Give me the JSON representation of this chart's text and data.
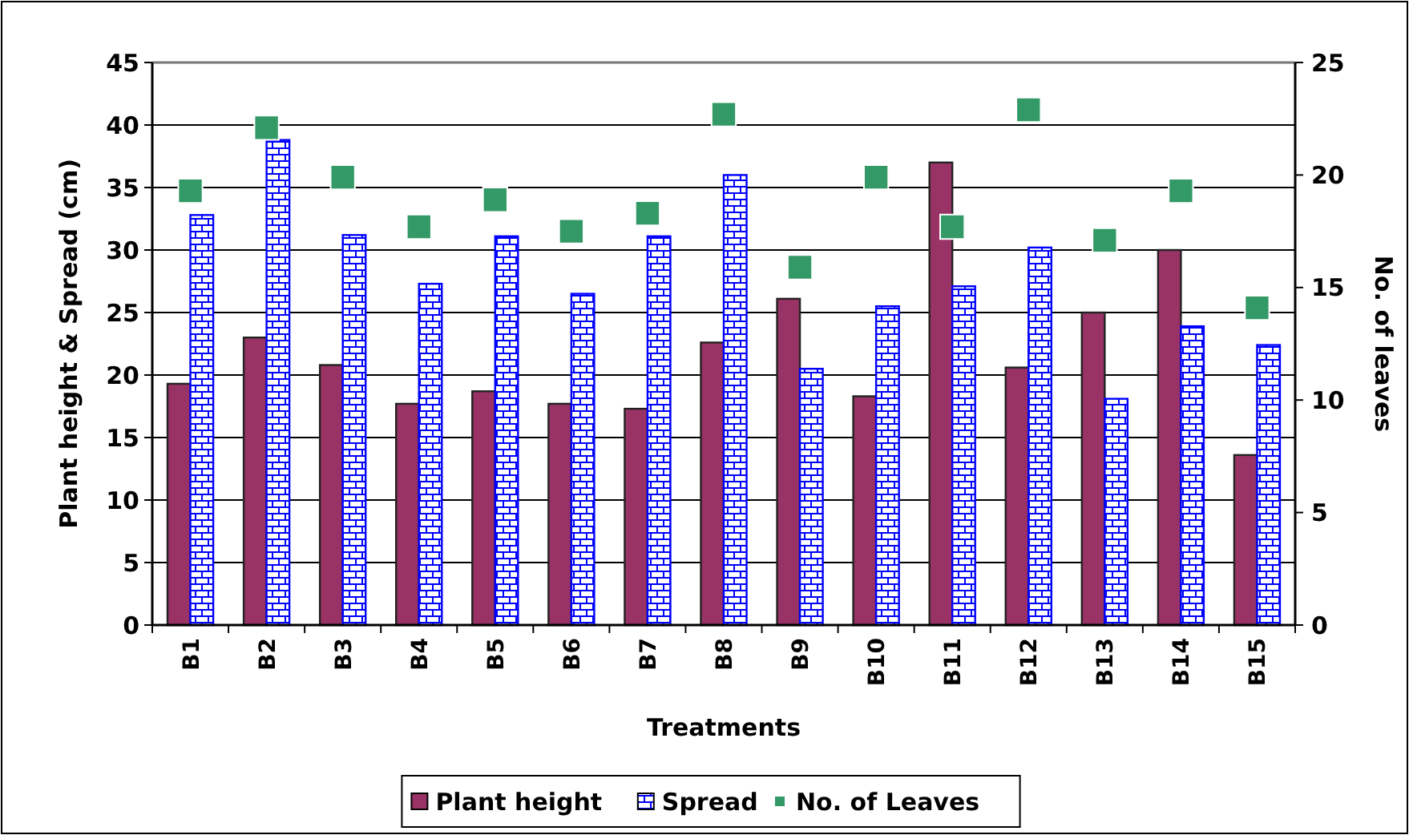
{
  "chart_data": {
    "type": "bar",
    "xlabel": "Treatments",
    "ylabel": "Plant height & Spread (cm)",
    "y2label": "No. of leaves",
    "categories": [
      "B1",
      "B2",
      "B3",
      "B4",
      "B5",
      "B6",
      "B7",
      "B8",
      "B9",
      "B10",
      "B11",
      "B12",
      "B13",
      "B14",
      "B15"
    ],
    "series": [
      {
        "name": "Plant height",
        "color": "#993366",
        "values": [
          19.3,
          23,
          20.8,
          17.7,
          18.7,
          17.7,
          17.3,
          22.6,
          26.1,
          18.3,
          37,
          20.6,
          25,
          30,
          13.6
        ]
      },
      {
        "name": "Spread",
        "color": "#0000ff",
        "values": [
          32.8,
          38.8,
          31.2,
          27.3,
          31.1,
          26.5,
          31.1,
          36,
          20.5,
          25.5,
          27.1,
          30.2,
          18.1,
          23.9,
          22.4
        ]
      },
      {
        "name": "No. of Leaves",
        "type": "scatter",
        "axis": "y2",
        "marker": "square",
        "color": "#339966",
        "values": [
          19.3,
          22.1,
          19.9,
          17.7,
          18.9,
          17.5,
          18.3,
          22.7,
          15.9,
          19.9,
          17.7,
          22.9,
          17.1,
          19.3,
          14.1
        ]
      }
    ],
    "ylim": [
      0,
      45
    ],
    "yticks": [
      0,
      5,
      10,
      15,
      20,
      25,
      30,
      35,
      40,
      45
    ],
    "y2lim": [
      0,
      25
    ],
    "y2ticks": [
      0,
      5,
      10,
      15,
      20,
      25
    ],
    "grid": "y",
    "legend": "bottom"
  }
}
